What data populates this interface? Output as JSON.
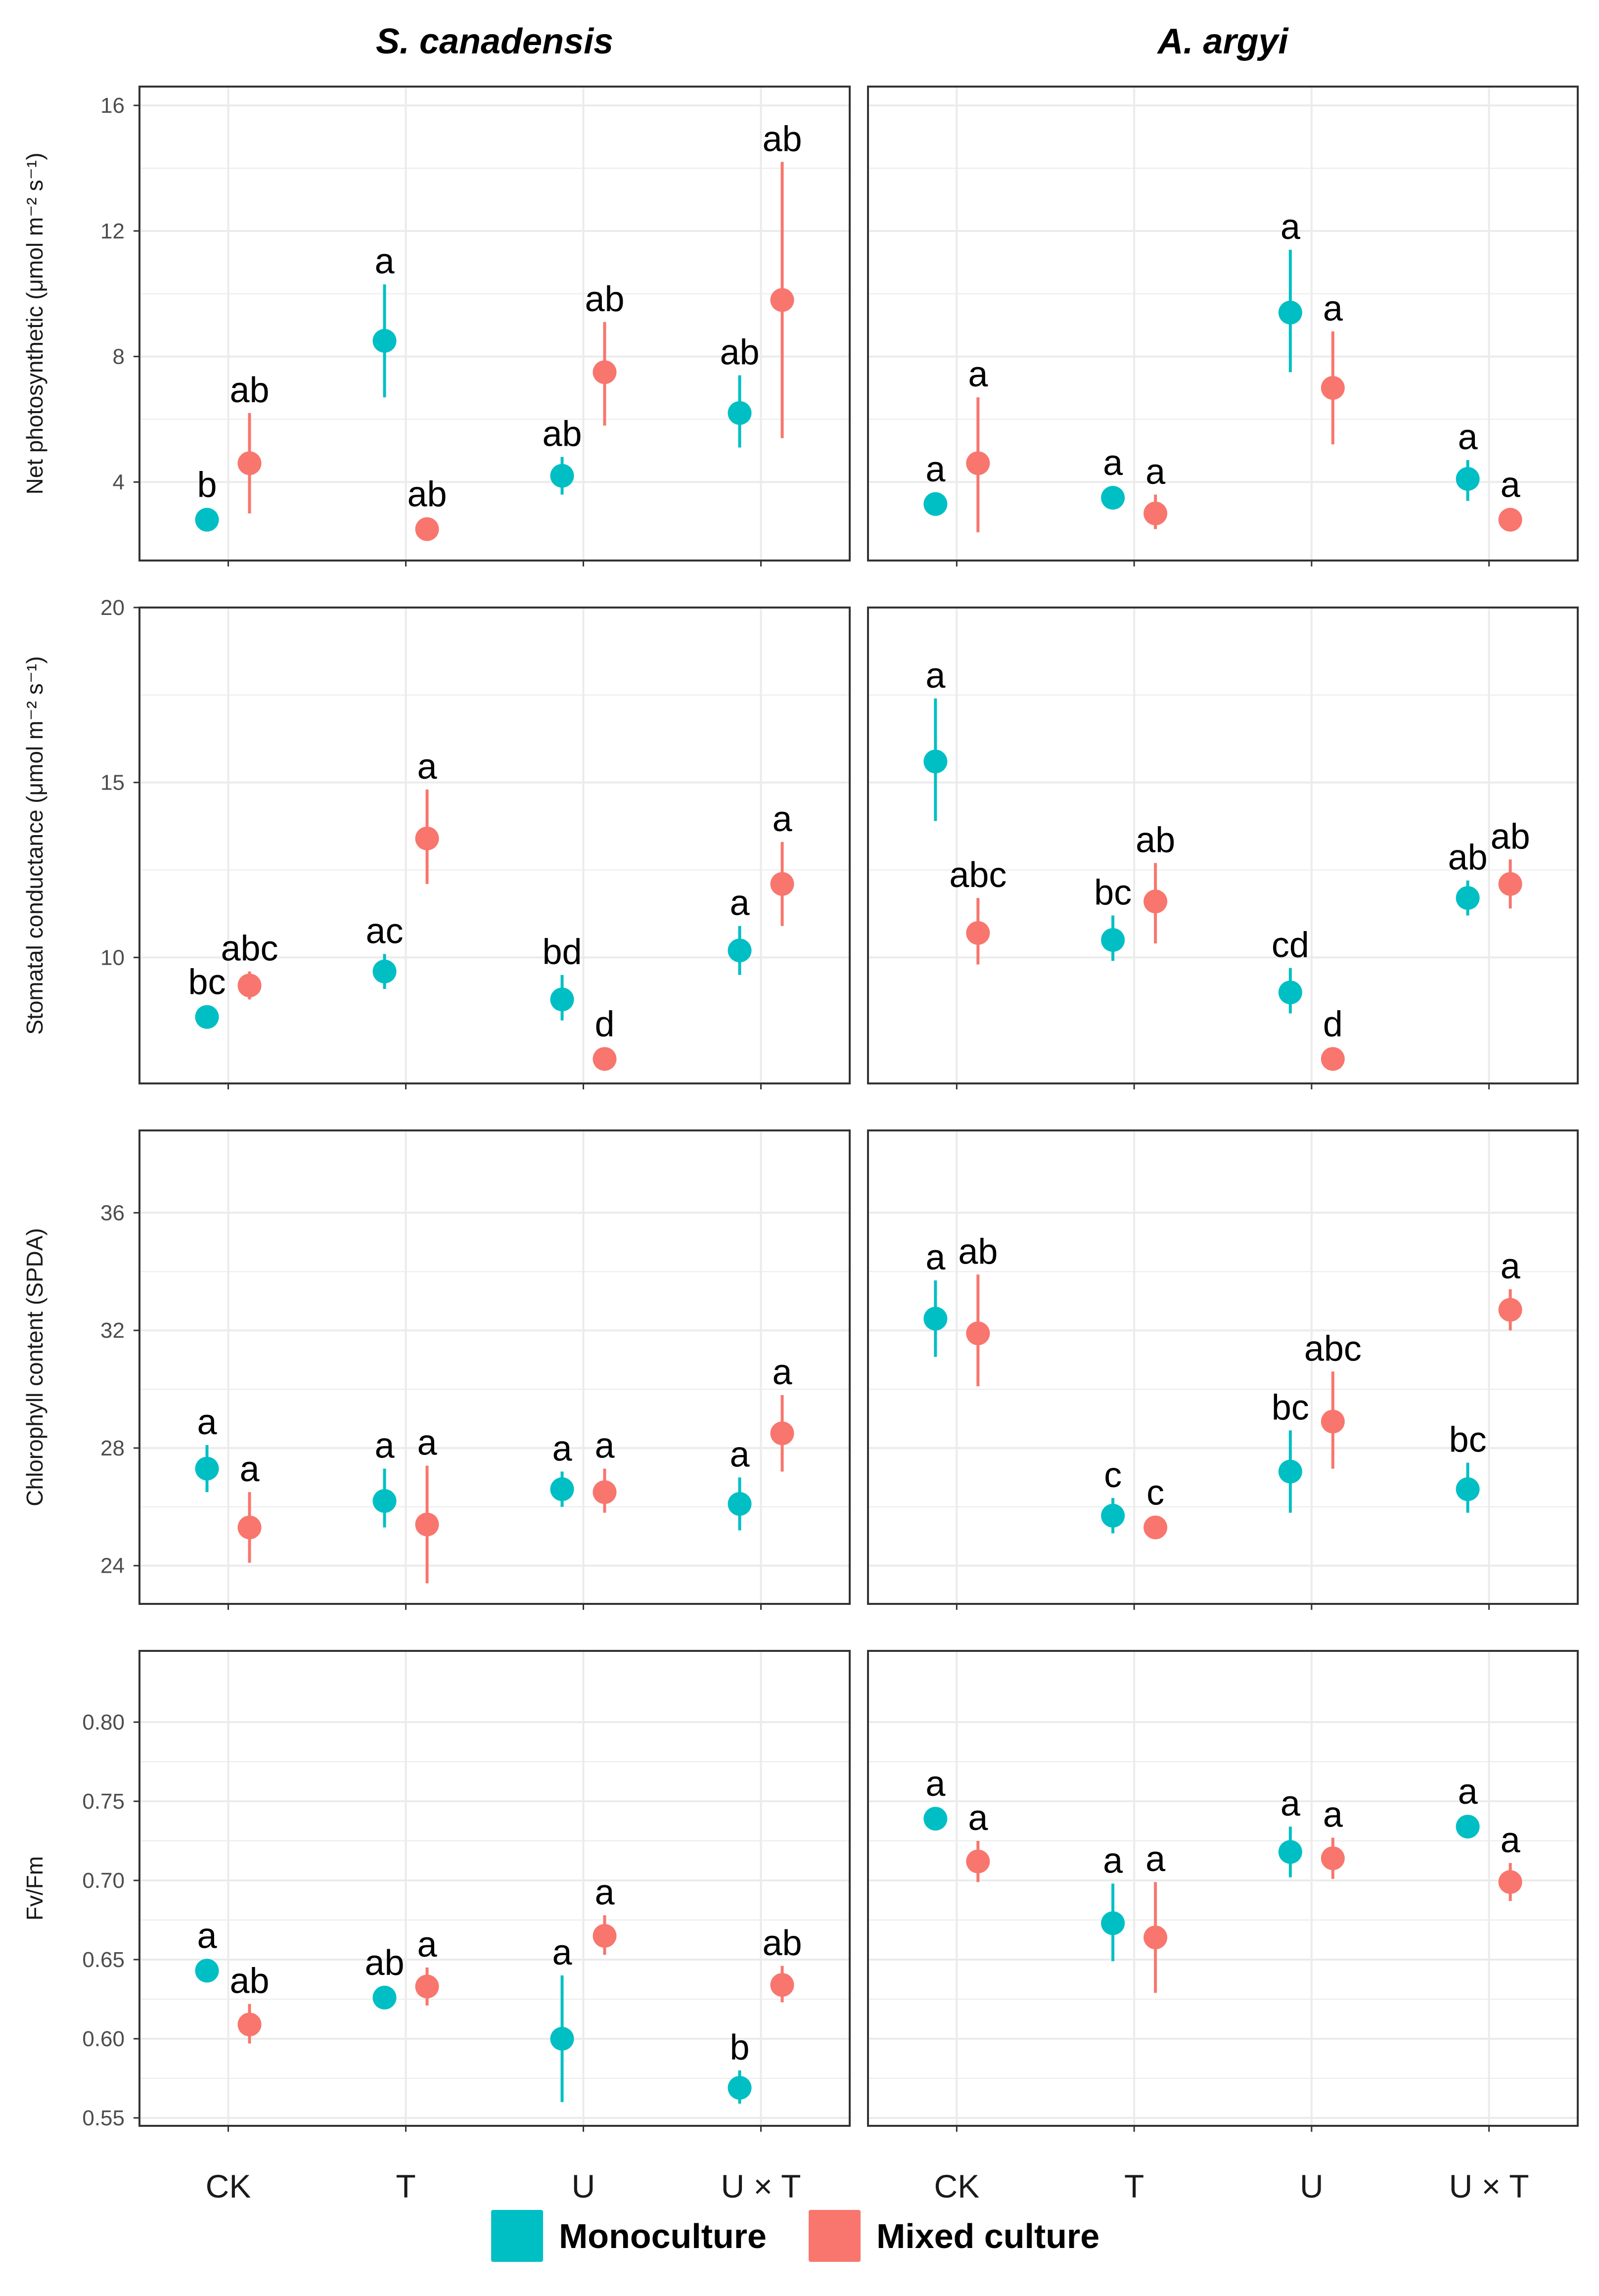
{
  "colors": {
    "mono": "#00BFC4",
    "mixed": "#F8766D",
    "grid": "#ebebeb",
    "border": "#333333"
  },
  "legend": {
    "mono_label": "Monoculture",
    "mixed_label": "Mixed culture"
  },
  "chart_data": {
    "type": "scatter",
    "subtype": "faceted point estimates with error bars and significance letters",
    "species": [
      "S. canadensis",
      "A. argyi"
    ],
    "categories": [
      "CK",
      "T",
      "U",
      "U × T"
    ],
    "series_names": [
      "Monoculture",
      "Mixed culture"
    ],
    "grid": true,
    "legend_position": "bottom",
    "rows": [
      {
        "key": "pn",
        "ylabel": "Net photosynthetic  (μmol m⁻² s⁻¹)",
        "ylim": [
          1.5,
          16.6
        ],
        "yticks": [
          4,
          8,
          12,
          16
        ],
        "tick_labels": [
          "4",
          "8",
          "12",
          "16"
        ],
        "panels": [
          {
            "mono": [
              {
                "v": 2.8,
                "lo": 2.8,
                "hi": 2.8,
                "sig": "b"
              },
              {
                "v": 8.5,
                "lo": 6.7,
                "hi": 10.3,
                "sig": "a"
              },
              {
                "v": 4.2,
                "lo": 3.6,
                "hi": 4.8,
                "sig": "ab"
              },
              {
                "v": 6.2,
                "lo": 5.1,
                "hi": 7.4,
                "sig": "ab"
              }
            ],
            "mixed": [
              {
                "v": 4.6,
                "lo": 3.0,
                "hi": 6.2,
                "sig": "ab"
              },
              {
                "v": 2.5,
                "lo": 2.5,
                "hi": 2.5,
                "sig": "ab"
              },
              {
                "v": 7.5,
                "lo": 5.8,
                "hi": 9.1,
                "sig": "ab"
              },
              {
                "v": 9.8,
                "lo": 5.4,
                "hi": 14.2,
                "sig": "ab"
              }
            ]
          },
          {
            "mono": [
              {
                "v": 3.3,
                "lo": 3.3,
                "hi": 3.3,
                "sig": "a"
              },
              {
                "v": 3.5,
                "lo": 3.5,
                "hi": 3.5,
                "sig": "a"
              },
              {
                "v": 9.4,
                "lo": 7.5,
                "hi": 11.4,
                "sig": "a"
              },
              {
                "v": 4.1,
                "lo": 3.4,
                "hi": 4.7,
                "sig": "a"
              }
            ],
            "mixed": [
              {
                "v": 4.6,
                "lo": 2.4,
                "hi": 6.7,
                "sig": "a"
              },
              {
                "v": 3.0,
                "lo": 2.5,
                "hi": 3.6,
                "sig": "a"
              },
              {
                "v": 7.0,
                "lo": 5.2,
                "hi": 8.8,
                "sig": "a"
              },
              {
                "v": 2.8,
                "lo": 2.8,
                "hi": 2.8,
                "sig": "a"
              }
            ]
          }
        ]
      },
      {
        "key": "gs",
        "ylabel": "Stomatal conductance  (μmol m⁻² s⁻¹)",
        "ylim": [
          6.4,
          20.0
        ],
        "yticks": [
          10,
          15,
          20
        ],
        "tick_labels": [
          "10",
          "15",
          "20"
        ],
        "panels": [
          {
            "mono": [
              {
                "v": 8.3,
                "lo": 8.3,
                "hi": 8.3,
                "sig": "bc"
              },
              {
                "v": 9.6,
                "lo": 9.1,
                "hi": 10.1,
                "sig": "ac"
              },
              {
                "v": 8.8,
                "lo": 8.2,
                "hi": 9.5,
                "sig": "bd"
              },
              {
                "v": 10.2,
                "lo": 9.5,
                "hi": 10.9,
                "sig": "a"
              }
            ],
            "mixed": [
              {
                "v": 9.2,
                "lo": 8.8,
                "hi": 9.6,
                "sig": "abc"
              },
              {
                "v": 13.4,
                "lo": 12.1,
                "hi": 14.8,
                "sig": "a"
              },
              {
                "v": 7.1,
                "lo": 7.1,
                "hi": 7.1,
                "sig": "d"
              },
              {
                "v": 12.1,
                "lo": 10.9,
                "hi": 13.3,
                "sig": "a"
              }
            ]
          },
          {
            "mono": [
              {
                "v": 15.6,
                "lo": 13.9,
                "hi": 17.4,
                "sig": "a"
              },
              {
                "v": 10.5,
                "lo": 9.9,
                "hi": 11.2,
                "sig": "bc"
              },
              {
                "v": 9.0,
                "lo": 8.4,
                "hi": 9.7,
                "sig": "cd"
              },
              {
                "v": 11.7,
                "lo": 11.2,
                "hi": 12.2,
                "sig": "ab"
              }
            ],
            "mixed": [
              {
                "v": 10.7,
                "lo": 9.8,
                "hi": 11.7,
                "sig": "abc"
              },
              {
                "v": 11.6,
                "lo": 10.4,
                "hi": 12.7,
                "sig": "ab"
              },
              {
                "v": 7.1,
                "lo": 7.1,
                "hi": 7.1,
                "sig": "d"
              },
              {
                "v": 12.1,
                "lo": 11.4,
                "hi": 12.8,
                "sig": "ab"
              }
            ]
          }
        ]
      },
      {
        "key": "chl",
        "ylabel": "Chlorophyll content (SPDA)",
        "ylim": [
          22.7,
          38.8
        ],
        "yticks": [
          24,
          28,
          32,
          36
        ],
        "tick_labels": [
          "24",
          "28",
          "32",
          "36"
        ],
        "panels": [
          {
            "mono": [
              {
                "v": 27.3,
                "lo": 26.5,
                "hi": 28.1,
                "sig": "a"
              },
              {
                "v": 26.2,
                "lo": 25.3,
                "hi": 27.3,
                "sig": "a"
              },
              {
                "v": 26.6,
                "lo": 26.0,
                "hi": 27.2,
                "sig": "a"
              },
              {
                "v": 26.1,
                "lo": 25.2,
                "hi": 27.0,
                "sig": "a"
              }
            ],
            "mixed": [
              {
                "v": 25.3,
                "lo": 24.1,
                "hi": 26.5,
                "sig": "a"
              },
              {
                "v": 25.4,
                "lo": 23.4,
                "hi": 27.4,
                "sig": "a"
              },
              {
                "v": 26.5,
                "lo": 25.8,
                "hi": 27.3,
                "sig": "a"
              },
              {
                "v": 28.5,
                "lo": 27.2,
                "hi": 29.8,
                "sig": "a"
              }
            ]
          },
          {
            "mono": [
              {
                "v": 32.4,
                "lo": 31.1,
                "hi": 33.7,
                "sig": "a"
              },
              {
                "v": 25.7,
                "lo": 25.1,
                "hi": 26.3,
                "sig": "c"
              },
              {
                "v": 27.2,
                "lo": 25.8,
                "hi": 28.6,
                "sig": "bc"
              },
              {
                "v": 26.6,
                "lo": 25.8,
                "hi": 27.5,
                "sig": "bc"
              }
            ],
            "mixed": [
              {
                "v": 31.9,
                "lo": 30.1,
                "hi": 33.9,
                "sig": "ab"
              },
              {
                "v": 25.3,
                "lo": 25.3,
                "hi": 25.3,
                "sig": "c"
              },
              {
                "v": 28.9,
                "lo": 27.3,
                "hi": 30.6,
                "sig": "abc"
              },
              {
                "v": 32.7,
                "lo": 32.0,
                "hi": 33.4,
                "sig": "a"
              }
            ]
          }
        ]
      },
      {
        "key": "fvfm",
        "ylabel": "Fv/Fm",
        "ylim": [
          0.545,
          0.845
        ],
        "yticks": [
          0.55,
          0.6,
          0.65,
          0.7,
          0.75,
          0.8
        ],
        "tick_labels": [
          "0.55",
          "0.60",
          "0.65",
          "0.70",
          "0.75",
          "0.80"
        ],
        "panels": [
          {
            "mono": [
              {
                "v": 0.643,
                "lo": 0.643,
                "hi": 0.643,
                "sig": "a"
              },
              {
                "v": 0.626,
                "lo": 0.626,
                "hi": 0.626,
                "sig": "ab"
              },
              {
                "v": 0.6,
                "lo": 0.56,
                "hi": 0.64,
                "sig": "a"
              },
              {
                "v": 0.569,
                "lo": 0.559,
                "hi": 0.58,
                "sig": "b"
              }
            ],
            "mixed": [
              {
                "v": 0.609,
                "lo": 0.597,
                "hi": 0.622,
                "sig": "ab"
              },
              {
                "v": 0.633,
                "lo": 0.621,
                "hi": 0.645,
                "sig": "a"
              },
              {
                "v": 0.665,
                "lo": 0.653,
                "hi": 0.678,
                "sig": "a"
              },
              {
                "v": 0.634,
                "lo": 0.623,
                "hi": 0.646,
                "sig": "ab"
              }
            ]
          },
          {
            "mono": [
              {
                "v": 0.739,
                "lo": 0.739,
                "hi": 0.739,
                "sig": "a"
              },
              {
                "v": 0.673,
                "lo": 0.649,
                "hi": 0.698,
                "sig": "a"
              },
              {
                "v": 0.718,
                "lo": 0.702,
                "hi": 0.734,
                "sig": "a"
              },
              {
                "v": 0.734,
                "lo": 0.734,
                "hi": 0.734,
                "sig": "a"
              }
            ],
            "mixed": [
              {
                "v": 0.712,
                "lo": 0.699,
                "hi": 0.725,
                "sig": "a"
              },
              {
                "v": 0.664,
                "lo": 0.629,
                "hi": 0.699,
                "sig": "a"
              },
              {
                "v": 0.714,
                "lo": 0.701,
                "hi": 0.727,
                "sig": "a"
              },
              {
                "v": 0.699,
                "lo": 0.687,
                "hi": 0.711,
                "sig": "a"
              }
            ]
          }
        ]
      }
    ]
  }
}
